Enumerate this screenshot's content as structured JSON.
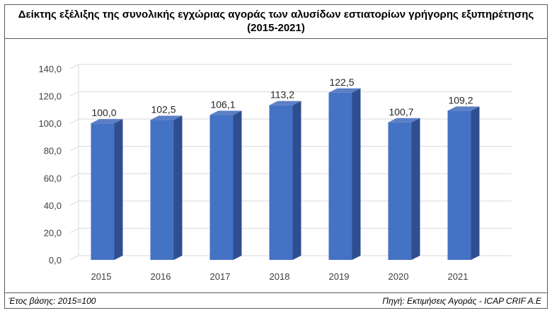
{
  "title_line1": "Δείκτης εξέλιξης της συνολικής εγχώριας αγοράς των αλυσίδων εστιατορίων γρήγορης εξυπηρέτησης",
  "title_line2": "(2015-2021)",
  "footer": {
    "left": "Έτος βάσης: 2015=100",
    "right": "Πηγή: Εκτιμήσεις Αγοράς - ICAP CRIF A.E"
  },
  "chart_data": {
    "type": "bar",
    "categories": [
      "2015",
      "2016",
      "2017",
      "2018",
      "2019",
      "2020",
      "2021"
    ],
    "values": [
      100.0,
      102.5,
      106.1,
      113.2,
      122.5,
      100.7,
      109.2
    ],
    "value_labels": [
      "100,0",
      "102,5",
      "106,1",
      "113,2",
      "122,5",
      "100,7",
      "109,2"
    ],
    "yticks": [
      "0,0",
      "20,0",
      "40,0",
      "60,0",
      "80,0",
      "100,0",
      "120,0",
      "140,0"
    ],
    "ylim": [
      0,
      140
    ],
    "grid": true,
    "legend": "none",
    "bar_color": "#4472C4",
    "bar_side_color": "#2F4E8F",
    "bar_top_color": "#5B7FC4"
  }
}
